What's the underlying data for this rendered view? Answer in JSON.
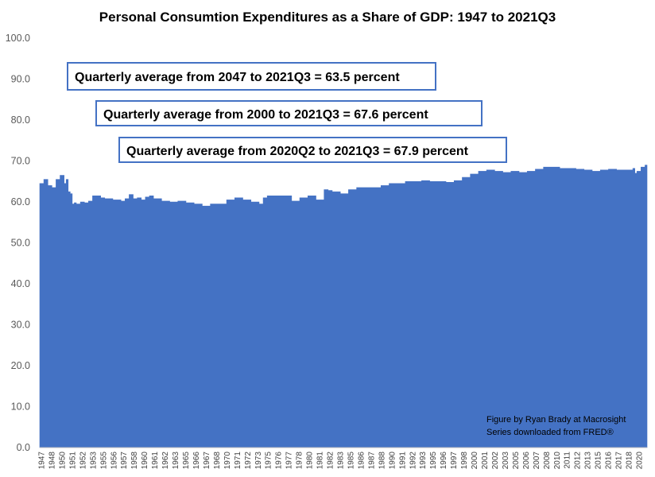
{
  "chart_data": {
    "type": "area",
    "title": "Personal Consumtion Expenditures as a Share of GDP: 1947 to 2021Q3",
    "xlabel": "",
    "ylabel": "",
    "ylim": [
      0,
      100
    ],
    "y_ticks": [
      "0.0",
      "10.0",
      "20.0",
      "30.0",
      "40.0",
      "50.0",
      "60.0",
      "70.0",
      "80.0",
      "90.0",
      "100.0"
    ],
    "x_tick_labels": [
      "1947",
      "1948",
      "1950",
      "1951",
      "1952",
      "1953",
      "1955",
      "1956",
      "1957",
      "1958",
      "1960",
      "1961",
      "1962",
      "1963",
      "1965",
      "1966",
      "1967",
      "1968",
      "1970",
      "1971",
      "1972",
      "1973",
      "1975",
      "1976",
      "1977",
      "1978",
      "1980",
      "1981",
      "1982",
      "1983",
      "1985",
      "1986",
      "1987",
      "1988",
      "1990",
      "1991",
      "1992",
      "1993",
      "1995",
      "1996",
      "1997",
      "1998",
      "2000",
      "2001",
      "2002",
      "2003",
      "2005",
      "2006",
      "2007",
      "2008",
      "2010",
      "2011",
      "2012",
      "2013",
      "2015",
      "2016",
      "2017",
      "2018",
      "2020"
    ],
    "color": "#4472c4",
    "series": [
      {
        "x": [
          1947.0,
          1947.5,
          1948.0,
          1948.5,
          1949.0,
          1949.5,
          1950.0,
          1950.25,
          1950.5,
          1950.75,
          1951.0,
          1951.25,
          1951.5,
          1952.0,
          1952.5,
          1953.0,
          1953.5,
          1954.0,
          1954.5,
          1955.0,
          1956.0,
          1957.0,
          1957.5,
          1958.0,
          1958.5,
          1959.0,
          1959.5,
          1960.0,
          1960.5,
          1961.0,
          1962.0,
          1963.0,
          1964.0,
          1965.0,
          1966.0,
          1967.0,
          1968.0,
          1969.0,
          1970.0,
          1971.0,
          1972.0,
          1973.0,
          1974.0,
          1974.5,
          1975.0,
          1976.0,
          1977.0,
          1978.0,
          1979.0,
          1980.0,
          1981.0,
          1982.0,
          1982.5,
          1983.0,
          1984.0,
          1985.0,
          1986.0,
          1987.0,
          1988.0,
          1989.0,
          1990.0,
          1991.0,
          1992.0,
          1993.0,
          1994.0,
          1995.0,
          1996.0,
          1997.0,
          1998.0,
          1999.0,
          2000.0,
          2001.0,
          2002.0,
          2003.0,
          2004.0,
          2005.0,
          2006.0,
          2007.0,
          2008.0,
          2009.0,
          2010.0,
          2011.0,
          2012.0,
          2013.0,
          2014.0,
          2015.0,
          2016.0,
          2017.0,
          2018.0,
          2019.0,
          2020.0,
          2020.25,
          2020.5,
          2021.0,
          2021.5
        ],
        "y": [
          64.5,
          65.5,
          64.0,
          63.5,
          65.5,
          66.5,
          64.5,
          65.5,
          62.5,
          62.0,
          59.5,
          59.8,
          59.5,
          60.0,
          59.8,
          60.2,
          61.5,
          61.5,
          61.0,
          60.8,
          60.5,
          60.2,
          60.8,
          61.8,
          60.8,
          61.0,
          60.5,
          61.2,
          61.5,
          60.8,
          60.2,
          60.0,
          60.2,
          59.8,
          59.5,
          59.0,
          59.5,
          59.5,
          60.5,
          61.0,
          60.5,
          60.0,
          59.5,
          61.0,
          61.5,
          61.5,
          61.5,
          60.2,
          61.0,
          61.5,
          60.5,
          63.0,
          62.8,
          62.5,
          62.0,
          63.0,
          63.5,
          63.5,
          63.5,
          64.0,
          64.5,
          64.5,
          65.0,
          65.0,
          65.2,
          65.0,
          65.0,
          64.8,
          65.2,
          66.0,
          66.8,
          67.5,
          67.8,
          67.5,
          67.2,
          67.5,
          67.2,
          67.5,
          68.0,
          68.5,
          68.5,
          68.2,
          68.2,
          68.0,
          67.8,
          67.5,
          67.8,
          68.0,
          67.8,
          67.8,
          68.2,
          67.0,
          67.5,
          68.5,
          69.0
        ]
      }
    ]
  },
  "annotations": [
    "Quarterly average from 2047 to 2021Q3 = 63.5 percent",
    "Quarterly average from 2000 to 2021Q3 = 67.6 percent",
    "Quarterly average from 2020Q2 to 2021Q3 = 67.9 percent"
  ],
  "credit": {
    "line1": "Figure by Ryan Brady at Macrosight",
    "line2": "Series downloaded from FRED®"
  }
}
